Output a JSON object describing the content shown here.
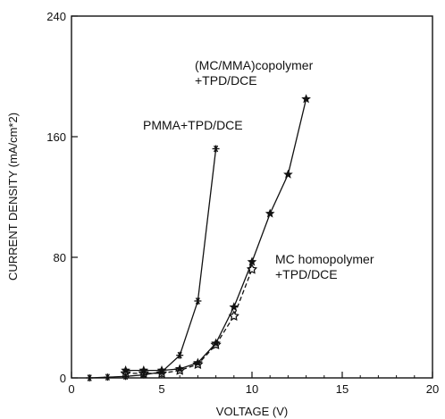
{
  "chart_data": {
    "type": "line",
    "xlabel": "VOLTAGE (V)",
    "ylabel": "CURRENT DENSITY (mA/cm*2)",
    "xlim": [
      0,
      20
    ],
    "ylim": [
      0,
      240
    ],
    "xticks": [
      0,
      5,
      10,
      15,
      20
    ],
    "yticks": [
      0,
      80,
      160,
      240
    ],
    "grid": false,
    "series": [
      {
        "label_lines": [
          "PMMA+TPD/DCE"
        ],
        "marker": "asterisk",
        "dash": false,
        "points": [
          [
            1,
            0
          ],
          [
            2,
            0.5
          ],
          [
            3,
            1
          ],
          [
            4,
            2
          ],
          [
            5,
            4
          ],
          [
            6,
            15
          ],
          [
            7,
            51
          ],
          [
            8,
            152
          ]
        ]
      },
      {
        "label_lines": [
          "(MC/MMA)copolymer",
          "+TPD/DCE"
        ],
        "marker": "star",
        "dash": false,
        "points": [
          [
            3,
            5
          ],
          [
            4,
            5
          ],
          [
            5,
            5
          ],
          [
            6,
            6
          ],
          [
            7,
            10
          ],
          [
            8,
            23
          ],
          [
            9,
            47
          ],
          [
            10,
            77
          ],
          [
            11,
            109
          ],
          [
            12,
            135
          ],
          [
            13,
            185
          ]
        ]
      },
      {
        "label_lines": [
          "MC homopolymer",
          "+TPD/DCE"
        ],
        "marker": "open-star",
        "dash": true,
        "points": [
          [
            3,
            3
          ],
          [
            4,
            3
          ],
          [
            5,
            3
          ],
          [
            6,
            5
          ],
          [
            7,
            9
          ],
          [
            8,
            22
          ],
          [
            9,
            41
          ],
          [
            10,
            72
          ]
        ]
      }
    ]
  }
}
